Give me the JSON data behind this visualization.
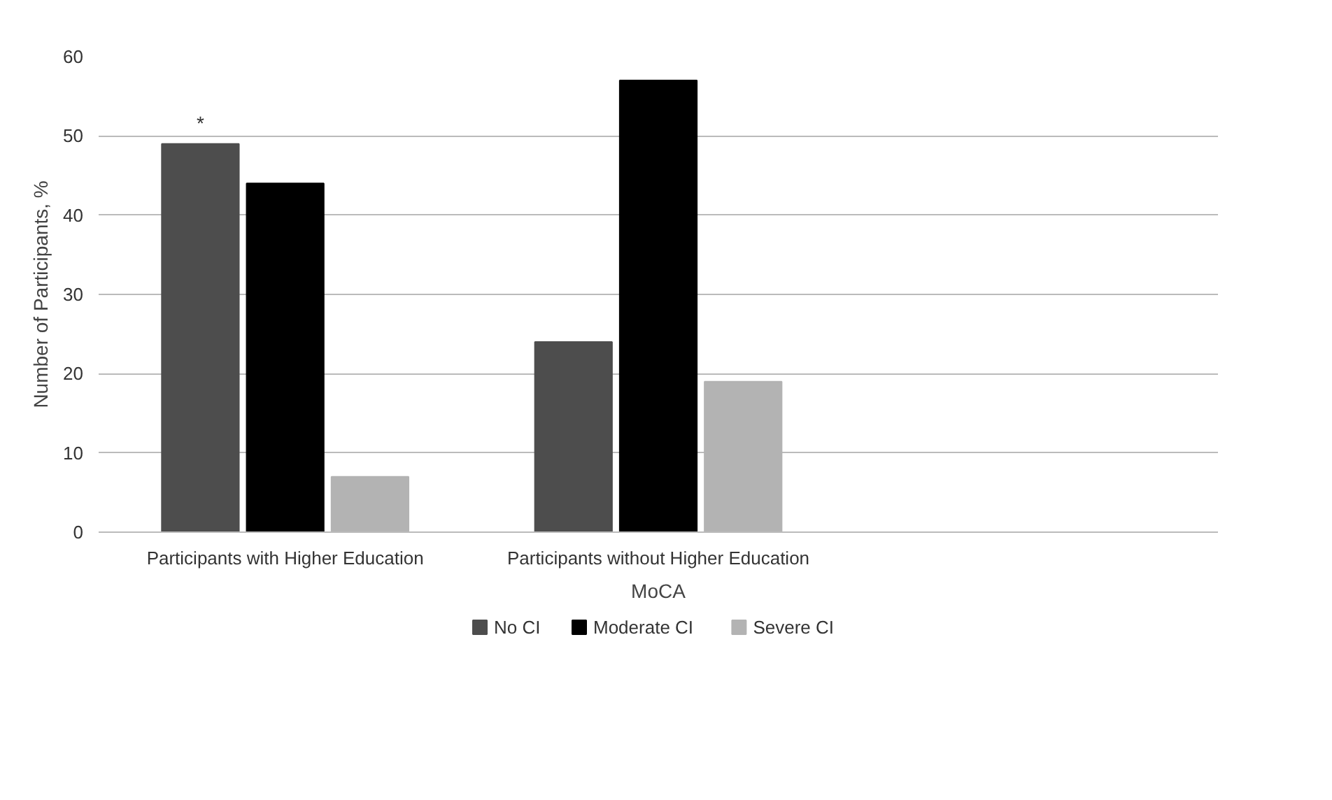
{
  "chart_data": {
    "type": "bar",
    "xlabel": "MoCA",
    "ylabel": "Number of Participants, %",
    "categories": [
      "Participants with Higher Education",
      "Participants without Higher Education",
      null
    ],
    "series": [
      {
        "name": "No CI",
        "color": "#4d4d4d",
        "values": [
          49,
          24,
          null
        ]
      },
      {
        "name": "Moderate CI",
        "color": "#000000",
        "values": [
          44,
          57,
          null
        ]
      },
      {
        "name": "Severe CI",
        "color": "#b3b3b3",
        "values": [
          7,
          19,
          null
        ]
      }
    ],
    "ylim": [
      0,
      60
    ],
    "yticks": [
      0,
      10,
      20,
      30,
      40,
      50,
      60
    ],
    "grid": "y",
    "legend": "bottom",
    "annotations": [
      "*"
    ]
  }
}
